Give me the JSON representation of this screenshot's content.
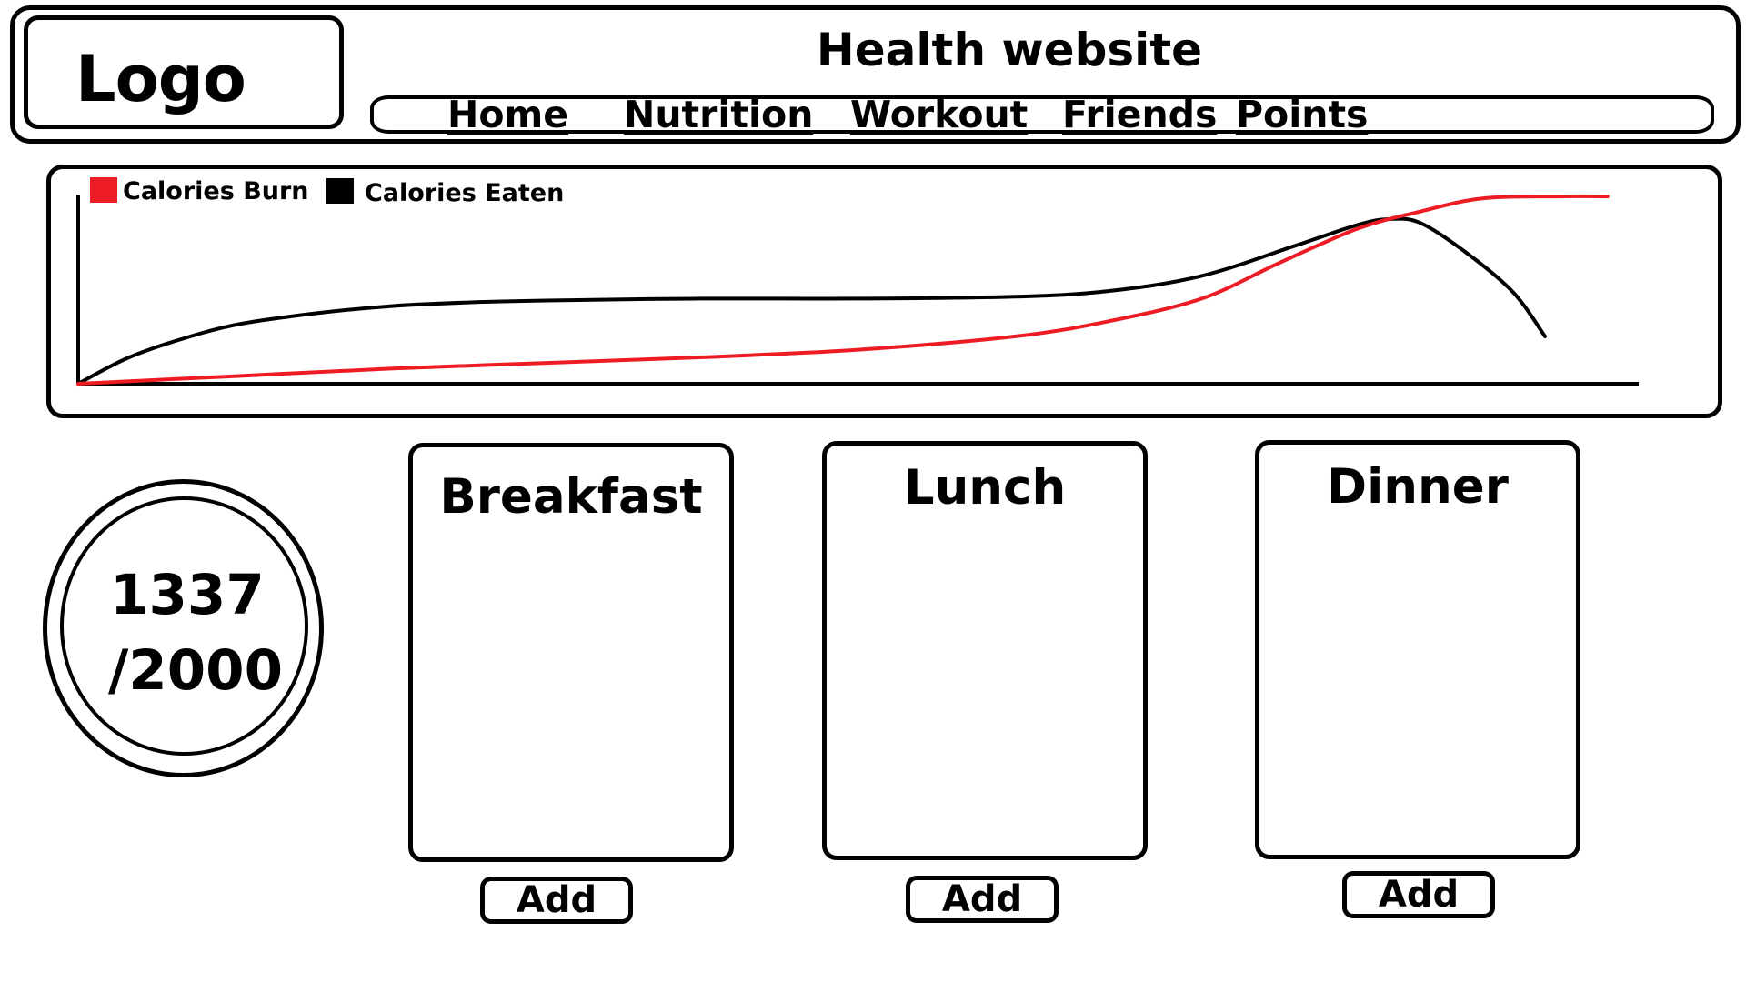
{
  "header": {
    "logo": "Logo",
    "title": "Health website",
    "nav": [
      "Home",
      "Nutrition",
      "Workout",
      "Friends",
      "Points"
    ]
  },
  "chart_data": {
    "type": "line",
    "legend": {
      "placement": "top-left",
      "entries": [
        {
          "name": "Calories Burn",
          "color": "#ed1c24"
        },
        {
          "name": "Calories Eaten",
          "color": "#000000"
        }
      ]
    },
    "axes": {
      "x_ticks": false,
      "y_ticks": false,
      "grid": false
    },
    "series": [
      {
        "name": "Calories Eaten",
        "color": "#000000",
        "points": [
          [
            0,
            0
          ],
          [
            3,
            13
          ],
          [
            6,
            22
          ],
          [
            10,
            31
          ],
          [
            15,
            37
          ],
          [
            20,
            41
          ],
          [
            25,
            43
          ],
          [
            30,
            44
          ],
          [
            40,
            45
          ],
          [
            50,
            45
          ],
          [
            60,
            46
          ],
          [
            66,
            49
          ],
          [
            72,
            57
          ],
          [
            78,
            73
          ],
          [
            82,
            84
          ],
          [
            84,
            87
          ],
          [
            86,
            85
          ],
          [
            89,
            69
          ],
          [
            92,
            48
          ],
          [
            94,
            25
          ]
        ]
      },
      {
        "name": "Calories Burn",
        "color": "#ed1c24",
        "points": [
          [
            0,
            0
          ],
          [
            10,
            4
          ],
          [
            20,
            8
          ],
          [
            30,
            11
          ],
          [
            40,
            14
          ],
          [
            50,
            18
          ],
          [
            60,
            25
          ],
          [
            66,
            33
          ],
          [
            72,
            45
          ],
          [
            77,
            64
          ],
          [
            82,
            82
          ],
          [
            86,
            91
          ],
          [
            90,
            98
          ],
          [
            95,
            99
          ],
          [
            98,
            99
          ]
        ]
      }
    ]
  },
  "calories": {
    "consumed": "1337",
    "goal": "/2000"
  },
  "meals": [
    {
      "name": "Breakfast",
      "button": "Add"
    },
    {
      "name": "Lunch",
      "button": "Add"
    },
    {
      "name": "Dinner",
      "button": "Add"
    }
  ]
}
